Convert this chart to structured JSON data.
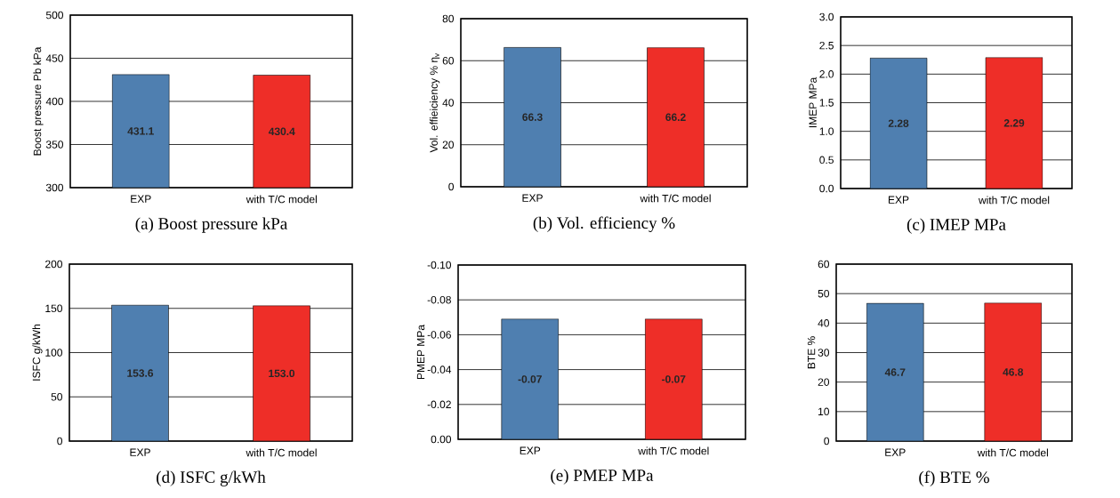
{
  "chart_data": [
    {
      "type": "bar",
      "title": "(a) Boost pressure kPa",
      "ylabel": "Boost pressure Pb kPa",
      "categories": [
        "EXP",
        "with T/C model"
      ],
      "values": [
        431.1,
        430.4
      ],
      "colors": [
        "#4f7fb0",
        "#ee2e28"
      ],
      "value_labels": [
        "431.1",
        "430.4"
      ],
      "ylim": [
        300,
        500
      ],
      "yticks": [
        300,
        350,
        400,
        450,
        500
      ],
      "grid": "y"
    },
    {
      "type": "bar",
      "title": "(b) Vol. efficiency %",
      "ylabel": "Vol. effieiciency % η$_{v}$",
      "categories": [
        "EXP",
        "with T/C model"
      ],
      "values": [
        66.3,
        66.2
      ],
      "colors": [
        "#4f7fb0",
        "#ee2e28"
      ],
      "value_labels": [
        "66.3",
        "66.2"
      ],
      "ylim": [
        0,
        80
      ],
      "yticks": [
        0,
        20,
        40,
        60,
        80
      ],
      "grid": "y"
    },
    {
      "type": "bar",
      "title": "(c) IMEP MPa",
      "ylabel": "IMEP MPa",
      "categories": [
        "EXP",
        "with T/C model"
      ],
      "values": [
        2.28,
        2.29
      ],
      "colors": [
        "#4f7fb0",
        "#ee2e28"
      ],
      "value_labels": [
        "2.28",
        "2.29"
      ],
      "ylim": [
        0,
        3
      ],
      "yticks": [
        {
          "value": 0,
          "label": "0.0"
        },
        {
          "value": 0.5,
          "label": "0.5"
        },
        {
          "value": 1,
          "label": "1.0"
        },
        {
          "value": 1.5,
          "label": "1.5"
        },
        {
          "value": 2,
          "label": "2.0"
        },
        {
          "value": 2.5,
          "label": "2.5"
        },
        {
          "value": 3,
          "label": "3.0"
        }
      ],
      "grid": "y"
    },
    {
      "type": "bar",
      "title": "(d) ISFC g/kWh",
      "ylabel": "ISFC g/kWh",
      "categories": [
        "EXP",
        "with T/C model"
      ],
      "values": [
        153.6,
        153.0
      ],
      "colors": [
        "#4f7fb0",
        "#ee2e28"
      ],
      "value_labels": [
        "153.6",
        "153.0"
      ],
      "ylim": [
        0,
        200
      ],
      "yticks": [
        0,
        50,
        100,
        150,
        200
      ],
      "grid": "y"
    },
    {
      "type": "bar",
      "title": "(e) PMEP MPa",
      "ylabel": "PMEP MPa",
      "categories": [
        "EXP",
        "with T/C model"
      ],
      "values": [
        -0.069,
        -0.069
      ],
      "colors": [
        "#4f7fb0",
        "#ee2e28"
      ],
      "value_labels": [
        "-0.07",
        "-0.07"
      ],
      "ylim": [
        0,
        -0.1
      ],
      "yticks": [
        {
          "value": 0,
          "label": "0.00"
        },
        {
          "value": -0.02,
          "label": "-0.02"
        },
        {
          "value": -0.04,
          "label": "-0.04"
        },
        {
          "value": -0.06,
          "label": "-0.06"
        },
        {
          "value": -0.08,
          "label": "-0.08"
        },
        {
          "value": -0.1,
          "label": "-0.10"
        }
      ],
      "grid": "y"
    },
    {
      "type": "bar",
      "title": "(f) BTE %",
      "ylabel": "BTE %",
      "categories": [
        "EXP",
        "with T/C model"
      ],
      "values": [
        46.7,
        46.8
      ],
      "colors": [
        "#4f7fb0",
        "#ee2e28"
      ],
      "value_labels": [
        "46.7",
        "46.8"
      ],
      "ylim": [
        0,
        60
      ],
      "yticks": [
        0,
        10,
        20,
        30,
        40,
        50,
        60
      ],
      "grid": "y"
    }
  ]
}
